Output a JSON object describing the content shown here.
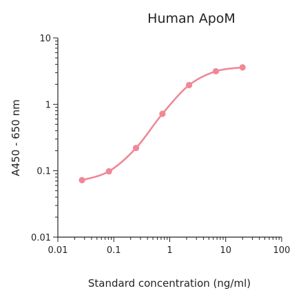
{
  "chart_data": {
    "type": "line",
    "title": "Human ApoM",
    "xlabel": "Standard concentration (ng/ml)",
    "ylabel": "A450 - 650 nm",
    "x_scale": "log",
    "y_scale": "log",
    "xlim": [
      0.01,
      100
    ],
    "ylim": [
      0.01,
      10
    ],
    "x_ticks": [
      0.01,
      0.1,
      1,
      10,
      100
    ],
    "x_tick_labels": [
      "0.01",
      "0.1",
      "1",
      "10",
      "100"
    ],
    "y_ticks": [
      0.01,
      0.1,
      1,
      10
    ],
    "y_tick_labels": [
      "0.01",
      "0.1",
      "1",
      "10"
    ],
    "grid": false,
    "series": [
      {
        "color": "#f08896",
        "x": [
          0.027,
          0.082,
          0.25,
          0.74,
          2.22,
          6.67,
          20
        ],
        "y": [
          0.072,
          0.098,
          0.22,
          0.72,
          1.95,
          3.15,
          3.6
        ]
      }
    ]
  }
}
